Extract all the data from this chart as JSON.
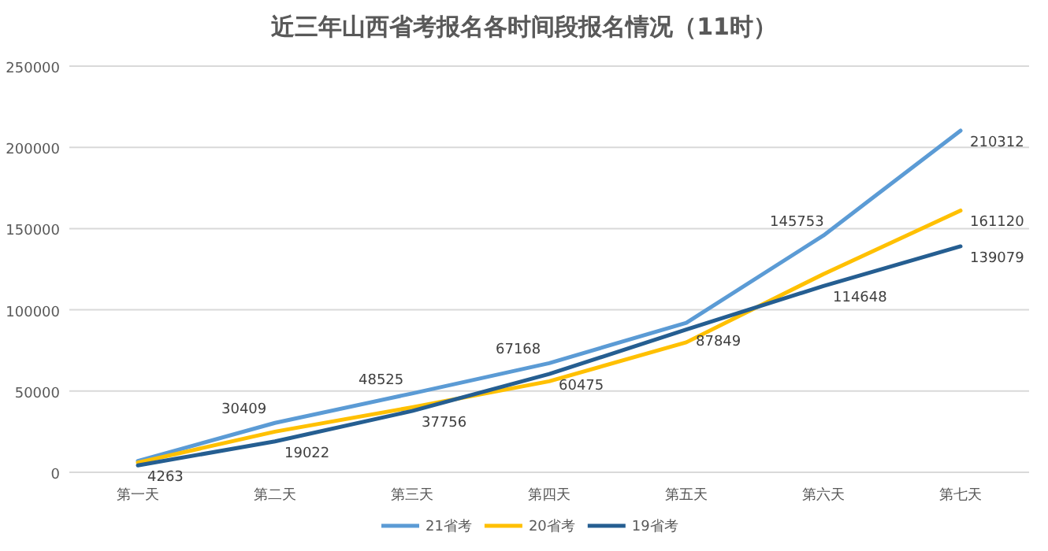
{
  "chart_data": {
    "type": "line",
    "title": "近三年山西省考报名各时间段报名情况（11时）",
    "categories": [
      "第一天",
      "第二天",
      "第三天",
      "第四天",
      "第五天",
      "第六天",
      "第七天"
    ],
    "ylim": [
      0,
      250000
    ],
    "yticks": [
      0,
      50000,
      100000,
      150000,
      200000,
      250000
    ],
    "grid": "y",
    "legend": "bottom",
    "marker": "none",
    "line_style": "solid",
    "series": [
      {
        "name": "21省考",
        "color": "#5b9bd5",
        "values": [
          7000,
          30409,
          48525,
          67168,
          92000,
          145753,
          210312
        ],
        "value_labels": [
          null,
          "30409",
          "48525",
          "67168",
          null,
          "145753",
          "210312"
        ]
      },
      {
        "name": "20省考",
        "color": "#ffc000",
        "values": [
          6000,
          25000,
          40000,
          56000,
          80000,
          122000,
          161120
        ],
        "value_labels": [
          null,
          null,
          null,
          null,
          null,
          null,
          "161120"
        ]
      },
      {
        "name": "19省考",
        "color": "#255e91",
        "values": [
          4263,
          19022,
          37756,
          60475,
          87849,
          114648,
          139079
        ],
        "value_labels": [
          "4263",
          "19022",
          "37756",
          "60475",
          "87849",
          "114648",
          "139079"
        ]
      }
    ]
  }
}
